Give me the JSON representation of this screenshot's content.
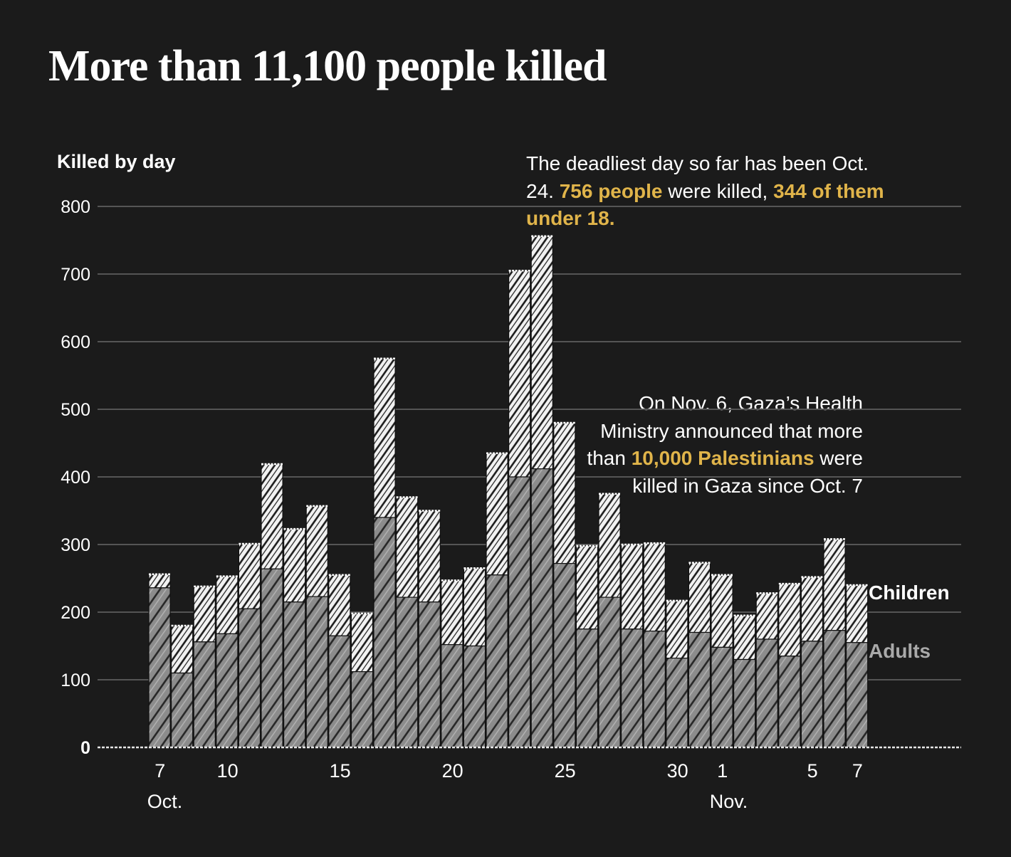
{
  "title": "More than 11,100 people killed",
  "annotations": {
    "deadliest": {
      "t1": "The deadliest day so far has been Oct. 24. ",
      "h1": "756 people",
      "t2": " were killed, ",
      "h2": "344 of them under 18."
    },
    "nov6": {
      "t1": "On Nov. 6, Gaza’s Health Ministry announced that more than ",
      "h1": "10,000 Palestinians",
      "t2": " were killed in Gaza since Oct. 7"
    }
  },
  "colors": {
    "background": "#1b1b1b",
    "adults": "#8c8c8c",
    "children": "#f2f2f2",
    "highlight": "#e0b44a",
    "grid": "#555555"
  },
  "chart_data": {
    "type": "bar",
    "stacked": true,
    "ylabel": "Killed by day",
    "ylim": [
      0,
      800
    ],
    "yticks": [
      0,
      100,
      200,
      300,
      400,
      500,
      600,
      700,
      800
    ],
    "dates": [
      "Oct 7",
      "Oct 8",
      "Oct 9",
      "Oct 10",
      "Oct 11",
      "Oct 12",
      "Oct 13",
      "Oct 14",
      "Oct 15",
      "Oct 16",
      "Oct 17",
      "Oct 18",
      "Oct 19",
      "Oct 20",
      "Oct 21",
      "Oct 22",
      "Oct 23",
      "Oct 24",
      "Oct 25",
      "Oct 26",
      "Oct 27",
      "Oct 28",
      "Oct 29",
      "Oct 30",
      "Oct 31",
      "Nov 1",
      "Nov 2",
      "Nov 3",
      "Nov 4",
      "Nov 5",
      "Nov 6",
      "Nov 7"
    ],
    "x_ticks": [
      {
        "index": 0,
        "label": "7",
        "month": "Oct."
      },
      {
        "index": 3,
        "label": "10"
      },
      {
        "index": 8,
        "label": "15"
      },
      {
        "index": 13,
        "label": "20"
      },
      {
        "index": 18,
        "label": "25"
      },
      {
        "index": 23,
        "label": "30"
      },
      {
        "index": 25,
        "label": "1",
        "month": "Nov."
      },
      {
        "index": 29,
        "label": "5"
      },
      {
        "index": 31,
        "label": "7"
      }
    ],
    "series": [
      {
        "name": "Adults",
        "values": [
          236,
          110,
          156,
          168,
          205,
          264,
          215,
          223,
          165,
          112,
          340,
          222,
          215,
          152,
          150,
          255,
          400,
          412,
          272,
          175,
          222,
          175,
          172,
          132,
          170,
          148,
          130,
          160,
          135,
          157,
          173,
          155
        ]
      },
      {
        "name": "Children",
        "values": [
          20,
          70,
          82,
          85,
          96,
          155,
          108,
          134,
          90,
          86,
          235,
          148,
          135,
          95,
          115,
          180,
          305,
          344,
          208,
          123,
          153,
          125,
          130,
          85,
          103,
          107,
          65,
          68,
          107,
          95,
          135,
          85
        ]
      }
    ],
    "totals": [
      256,
      180,
      238,
      253,
      301,
      419,
      323,
      357,
      255,
      198,
      575,
      370,
      350,
      247,
      265,
      435,
      705,
      756,
      480,
      298,
      375,
      300,
      302,
      217,
      273,
      255,
      195,
      228,
      242,
      252,
      308,
      240
    ],
    "legend": {
      "children": "Children",
      "adults": "Adults"
    }
  }
}
